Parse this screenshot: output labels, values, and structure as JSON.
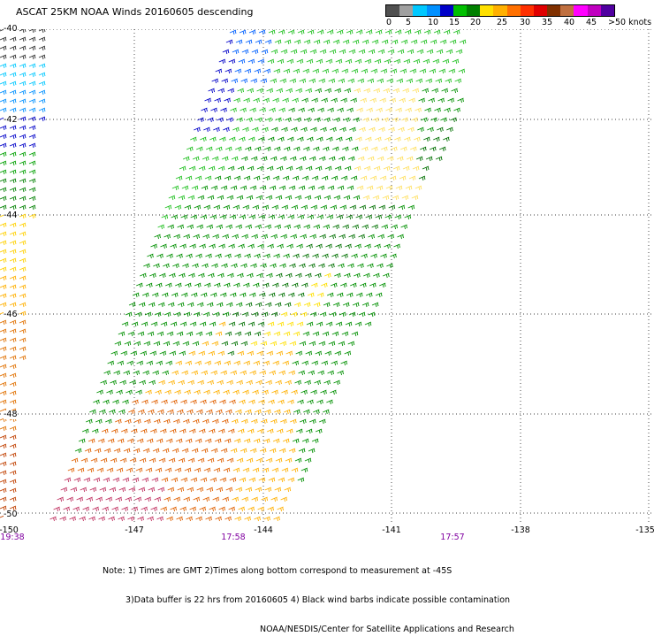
{
  "header": {
    "title": "ASCAT 25KM NOAA Winds 20160605 descending"
  },
  "scale": {
    "colors": [
      "#505050",
      "#a0a0a0",
      "#00c8ff",
      "#0090ff",
      "#0000c8",
      "#00c000",
      "#008000",
      "#ffe000",
      "#ffb000",
      "#ff7000",
      "#ff3000",
      "#e00000",
      "#803000",
      "#c07040",
      "#ff00ff",
      "#c000c0",
      "#5000a0"
    ],
    "labels": [
      "0",
      "5",
      "10",
      "15",
      "20",
      "25",
      "30",
      "35",
      "40",
      "45",
      ">50 knots"
    ]
  },
  "map": {
    "lat_labels": [
      "-40",
      "-42",
      "-44",
      "-46",
      "-48",
      "-50"
    ],
    "lon_labels": [
      "-150",
      "-147",
      "-144",
      "-141",
      "-138",
      "-135"
    ],
    "time_labels": [
      "19:38",
      "17:58",
      "17:57"
    ]
  },
  "note": {
    "line1": "Note: 1) Times are GMT 2)Times along bottom correspond to measurement at -45S",
    "line2": "3)Data buffer is 22 hrs from 20160605 4) Black wind barbs indicate possible contamination",
    "line3": "NOAA/NESDIS/Center for Satellite Applications and Research"
  }
}
